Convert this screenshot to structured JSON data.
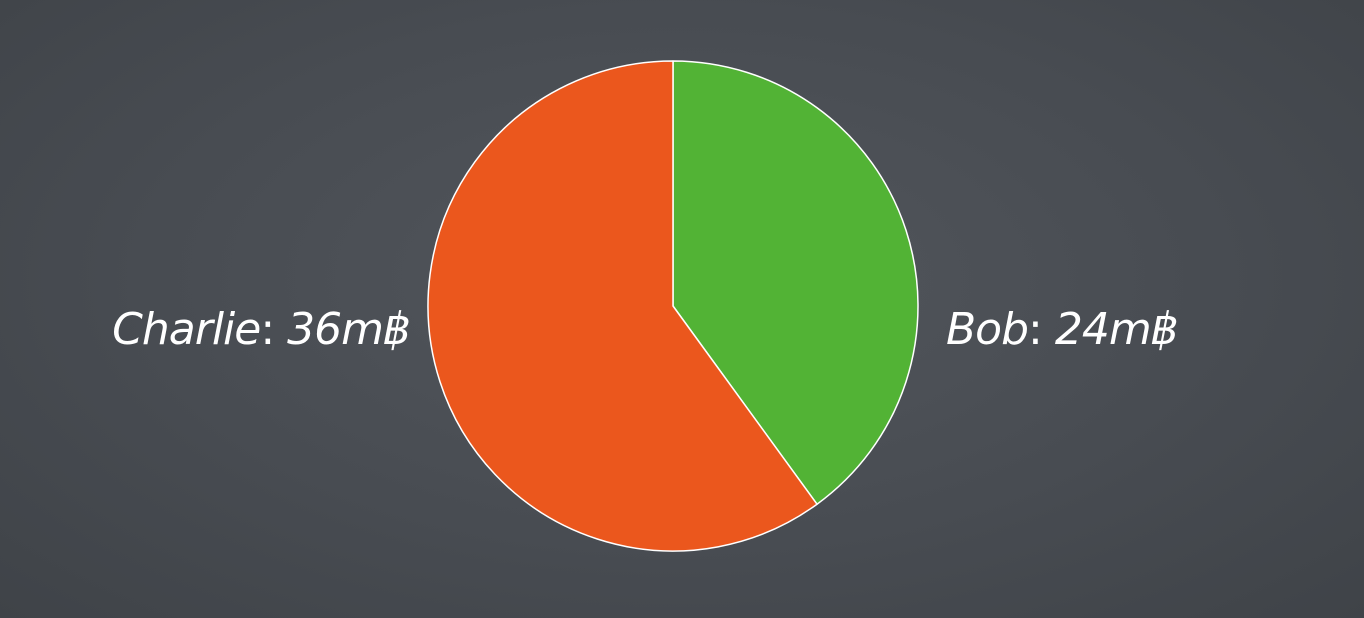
{
  "chart_data": {
    "type": "pie",
    "slices": [
      {
        "label": "Bob",
        "value": 24,
        "value_text": "24m฿",
        "color": "#52b335"
      },
      {
        "label": "Charlie",
        "value": 36,
        "value_text": "36m฿",
        "color": "#eb571d"
      }
    ],
    "separator": ": ",
    "slice_border_color": "#ffffff",
    "start": "top",
    "direction": "clockwise",
    "legend": "none"
  }
}
